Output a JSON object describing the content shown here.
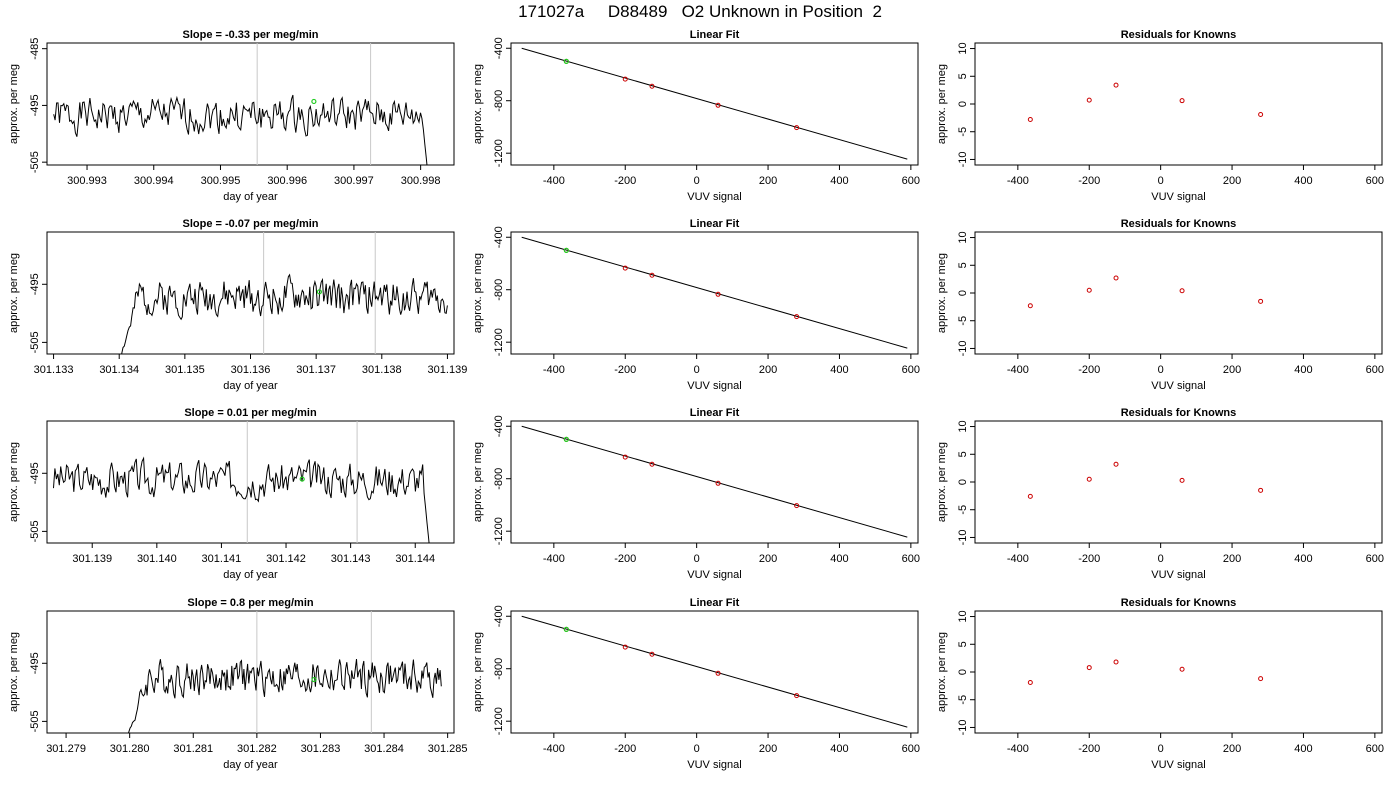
{
  "page": {
    "title": "171027a     D88489   O2 Unknown in Position  2"
  },
  "colors": {
    "trace": "#000000",
    "known_point": "#cc0000",
    "unknown_point": "#22cc22",
    "vline": "#c8c8c8",
    "fit_line": "#000000"
  },
  "chart_data": [
    {
      "type": "line",
      "panel": "row1-timeseries",
      "title": "Slope =  -0.33  per meg/min",
      "xlabel": "day of year",
      "ylabel": "approx. per meg",
      "xticks": [
        300.993,
        300.994,
        300.995,
        300.996,
        300.997,
        300.998
      ],
      "yticks": [
        -485,
        -495,
        -505
      ],
      "xlim": [
        300.9924,
        300.9985
      ],
      "ylim": [
        -505.5,
        -484
      ],
      "vlines": [
        300.99555,
        300.99725
      ],
      "base": -496.8,
      "seed": 1,
      "end_drop": true,
      "start_rise": false,
      "rise_x": null,
      "x_start": 300.9925,
      "x_end": 300.99815,
      "marker": {
        "x": 300.9964,
        "y": -494.3
      }
    },
    {
      "type": "scatter",
      "panel": "row1-linear-fit",
      "title": "Linear Fit",
      "xlabel": "VUV signal",
      "ylabel": "approx. per meg",
      "xticks": [
        -400,
        -200,
        0,
        200,
        400,
        600
      ],
      "yticks": [
        -400,
        -800,
        -1200
      ],
      "xlim": [
        -520,
        620
      ],
      "ylim": [
        -1290,
        -360
      ],
      "line": {
        "x": [
          -490,
          590
        ],
        "y": [
          -400,
          -1245
        ]
      },
      "knowns": {
        "x": [
          -365,
          -200,
          -125,
          60,
          280
        ],
        "y": [
          -500,
          -635,
          -690,
          -835,
          -1005
        ]
      },
      "unknown": {
        "x": -365,
        "y": -500
      }
    },
    {
      "type": "scatter",
      "panel": "row1-residuals",
      "title": "Residuals for Knowns",
      "xlabel": "VUV signal",
      "ylabel": "approx. per meg",
      "xticks": [
        -400,
        -200,
        0,
        200,
        400,
        600
      ],
      "yticks": [
        10,
        5,
        0,
        -5,
        -10
      ],
      "xlim": [
        -520,
        620
      ],
      "ylim": [
        -11,
        11
      ],
      "points": {
        "x": [
          -365,
          -200,
          -125,
          60,
          280
        ],
        "y": [
          -2.8,
          0.7,
          3.4,
          0.6,
          -1.9
        ]
      }
    },
    {
      "type": "line",
      "panel": "row2-timeseries",
      "title": "Slope =  -0.07  per meg/min",
      "xlabel": "day of year",
      "ylabel": "approx. per meg",
      "xticks": [
        301.133,
        301.134,
        301.135,
        301.136,
        301.137,
        301.138,
        301.139
      ],
      "yticks": [
        -495,
        -505
      ],
      "xlim": [
        301.1329,
        301.1391
      ],
      "ylim": [
        -507,
        -486
      ],
      "vlines": [
        301.1362,
        301.1379
      ],
      "base": -497.2,
      "seed": 2,
      "end_drop": false,
      "start_rise": true,
      "rise_x": 301.1343,
      "x_start": 301.134,
      "x_end": 301.139,
      "marker": {
        "x": 301.13705,
        "y": -496.3
      }
    },
    {
      "type": "scatter",
      "panel": "row2-linear-fit",
      "title": "Linear Fit",
      "xlabel": "VUV signal",
      "ylabel": "approx. per meg",
      "xticks": [
        -400,
        -200,
        0,
        200,
        400,
        600
      ],
      "yticks": [
        -400,
        -800,
        -1200
      ],
      "xlim": [
        -520,
        620
      ],
      "ylim": [
        -1290,
        -360
      ],
      "line": {
        "x": [
          -490,
          590
        ],
        "y": [
          -400,
          -1245
        ]
      },
      "knowns": {
        "x": [
          -365,
          -200,
          -125,
          60,
          280
        ],
        "y": [
          -500,
          -635,
          -690,
          -835,
          -1005
        ]
      },
      "unknown": {
        "x": -365,
        "y": -500
      }
    },
    {
      "type": "scatter",
      "panel": "row2-residuals",
      "title": "Residuals for Knowns",
      "xlabel": "VUV signal",
      "ylabel": "approx. per meg",
      "xticks": [
        -400,
        -200,
        0,
        200,
        400,
        600
      ],
      "yticks": [
        10,
        5,
        0,
        -5,
        -10
      ],
      "xlim": [
        -520,
        620
      ],
      "ylim": [
        -11,
        11
      ],
      "points": {
        "x": [
          -365,
          -200,
          -125,
          60,
          280
        ],
        "y": [
          -2.3,
          0.5,
          2.7,
          0.4,
          -1.5
        ]
      }
    },
    {
      "type": "line",
      "panel": "row3-timeseries",
      "title": "Slope =  0.01  per meg/min",
      "xlabel": "day of year",
      "ylabel": "approx. per meg",
      "xticks": [
        301.139,
        301.14,
        301.141,
        301.142,
        301.143,
        301.144
      ],
      "yticks": [
        -495,
        -505
      ],
      "xlim": [
        301.1383,
        301.1446
      ],
      "ylim": [
        -507,
        -486
      ],
      "vlines": [
        301.1414,
        301.1431
      ],
      "base": -496.0,
      "seed": 3,
      "end_drop": true,
      "start_rise": false,
      "rise_x": null,
      "x_start": 301.1384,
      "x_end": 301.14425,
      "marker": {
        "x": 301.14225,
        "y": -496.0
      }
    },
    {
      "type": "scatter",
      "panel": "row3-linear-fit",
      "title": "Linear Fit",
      "xlabel": "VUV signal",
      "ylabel": "approx. per meg",
      "xticks": [
        -400,
        -200,
        0,
        200,
        400,
        600
      ],
      "yticks": [
        -400,
        -800,
        -1200
      ],
      "xlim": [
        -520,
        620
      ],
      "ylim": [
        -1290,
        -360
      ],
      "line": {
        "x": [
          -490,
          590
        ],
        "y": [
          -400,
          -1245
        ]
      },
      "knowns": {
        "x": [
          -365,
          -200,
          -125,
          60,
          280
        ],
        "y": [
          -500,
          -635,
          -690,
          -835,
          -1005
        ]
      },
      "unknown": {
        "x": -365,
        "y": -500
      }
    },
    {
      "type": "scatter",
      "panel": "row3-residuals",
      "title": "Residuals for Knowns",
      "xlabel": "VUV signal",
      "ylabel": "approx. per meg",
      "xticks": [
        -400,
        -200,
        0,
        200,
        400,
        600
      ],
      "yticks": [
        10,
        5,
        0,
        -5,
        -10
      ],
      "xlim": [
        -520,
        620
      ],
      "ylim": [
        -11,
        11
      ],
      "points": {
        "x": [
          -365,
          -200,
          -125,
          60,
          280
        ],
        "y": [
          -2.6,
          0.5,
          3.2,
          0.3,
          -1.5
        ]
      }
    },
    {
      "type": "line",
      "panel": "row4-timeseries",
      "title": "Slope =  0.8  per meg/min",
      "xlabel": "day of year",
      "ylabel": "approx. per meg",
      "xticks": [
        301.279,
        301.28,
        301.281,
        301.282,
        301.283,
        301.284,
        301.285
      ],
      "yticks": [
        -495,
        -505
      ],
      "xlim": [
        301.2787,
        301.2851
      ],
      "ylim": [
        -507,
        -486
      ],
      "vlines": [
        301.282,
        301.2838
      ],
      "base": -497.4,
      "seed": 4,
      "end_drop": false,
      "start_rise": true,
      "rise_x": 301.2803,
      "x_start": 301.27995,
      "x_end": 301.2849,
      "marker": {
        "x": 301.2829,
        "y": -497.8
      }
    },
    {
      "type": "scatter",
      "panel": "row4-linear-fit",
      "title": "Linear Fit",
      "xlabel": "VUV signal",
      "ylabel": "approx. per meg",
      "xticks": [
        -400,
        -200,
        0,
        200,
        400,
        600
      ],
      "yticks": [
        -400,
        -800,
        -1200
      ],
      "xlim": [
        -520,
        620
      ],
      "ylim": [
        -1290,
        -360
      ],
      "line": {
        "x": [
          -490,
          590
        ],
        "y": [
          -400,
          -1245
        ]
      },
      "knowns": {
        "x": [
          -365,
          -200,
          -125,
          60,
          280
        ],
        "y": [
          -500,
          -635,
          -690,
          -835,
          -1005
        ]
      },
      "unknown": {
        "x": -365,
        "y": -500
      }
    },
    {
      "type": "scatter",
      "panel": "row4-residuals",
      "title": "Residuals for Knowns",
      "xlabel": "VUV signal",
      "ylabel": "approx. per meg",
      "xticks": [
        -400,
        -200,
        0,
        200,
        400,
        600
      ],
      "yticks": [
        10,
        5,
        0,
        -5,
        -10
      ],
      "xlim": [
        -520,
        620
      ],
      "ylim": [
        -11,
        11
      ],
      "points": {
        "x": [
          -365,
          -200,
          -125,
          60,
          280
        ],
        "y": [
          -1.9,
          0.8,
          1.8,
          0.5,
          -1.2
        ]
      }
    }
  ]
}
